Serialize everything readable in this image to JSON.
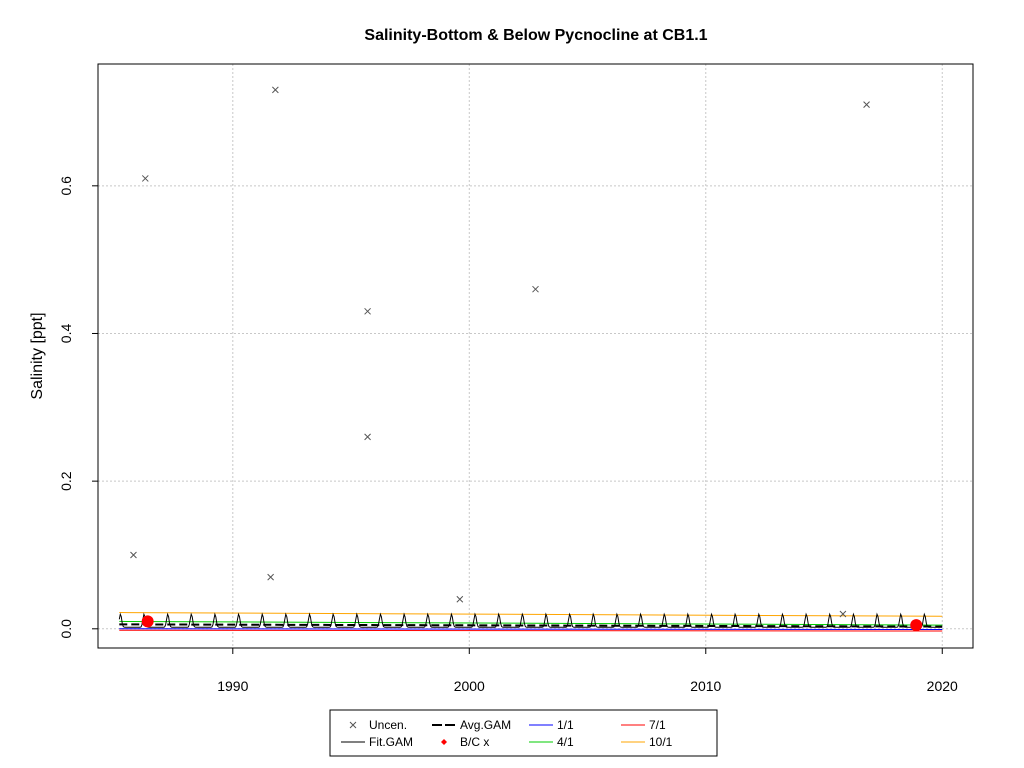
{
  "chart_data": {
    "type": "scatter",
    "title": "Salinity-Bottom & Below Pycnocline at CB1.1",
    "xlabel": "",
    "ylabel": "Salinity [ppt]",
    "xlim": [
      1984.3,
      2021.3
    ],
    "ylim": [
      -0.026,
      0.765
    ],
    "x_ticks": [
      1990,
      2000,
      2010,
      2020
    ],
    "y_ticks": [
      0.0,
      0.2,
      0.4,
      0.6
    ],
    "y_tick_labels": [
      "0.0",
      "0.2",
      "0.4",
      "0.6"
    ],
    "grid": true,
    "uncensored_points": [
      {
        "x": 1985.8,
        "y": 0.1
      },
      {
        "x": 1986.3,
        "y": 0.61
      },
      {
        "x": 1991.6,
        "y": 0.07
      },
      {
        "x": 1991.8,
        "y": 0.73
      },
      {
        "x": 1995.7,
        "y": 0.43
      },
      {
        "x": 1995.7,
        "y": 0.26
      },
      {
        "x": 1999.6,
        "y": 0.04
      },
      {
        "x": 2002.8,
        "y": 0.46
      },
      {
        "x": 2015.8,
        "y": 0.02
      },
      {
        "x": 2016.8,
        "y": 0.71
      }
    ],
    "bc_points": [
      {
        "x": 1986.4,
        "y": 0.01
      },
      {
        "x": 2018.9,
        "y": 0.005
      }
    ],
    "fit_gam": {
      "x_start": 1985.2,
      "x_end": 2020.0,
      "baseline": 0.002,
      "seasonal_peak": 0.02
    },
    "avg_gam": {
      "x_start": 1985.2,
      "x_end": 2020.0,
      "y_start": 0.006,
      "y_end": 0.003
    },
    "seasonal_lines": [
      {
        "name": "1/1",
        "y_start": 0.0,
        "y_end": -0.001
      },
      {
        "name": "4/1",
        "y_start": 0.01,
        "y_end": 0.005
      },
      {
        "name": "7/1",
        "y_start": -0.002,
        "y_end": -0.003
      },
      {
        "name": "10/1",
        "y_start": 0.022,
        "y_end": 0.017
      }
    ],
    "legend": {
      "position": "bottom",
      "entries": [
        {
          "label": "Uncen.",
          "symbol": "x",
          "color": "#555555"
        },
        {
          "label": "Avg.GAM",
          "symbol": "dashed-line",
          "color": "#000000"
        },
        {
          "label": "1/1",
          "symbol": "line",
          "color": "#0000ff"
        },
        {
          "label": "7/1",
          "symbol": "line",
          "color": "#ff0000"
        },
        {
          "label": "Fit.GAM",
          "symbol": "line",
          "color": "#000000"
        },
        {
          "label": "B/C x",
          "symbol": "diamond",
          "color": "#ff0000"
        },
        {
          "label": "4/1",
          "symbol": "line",
          "color": "#00cc00"
        },
        {
          "label": "10/1",
          "symbol": "line",
          "color": "#ffa500"
        }
      ]
    }
  }
}
